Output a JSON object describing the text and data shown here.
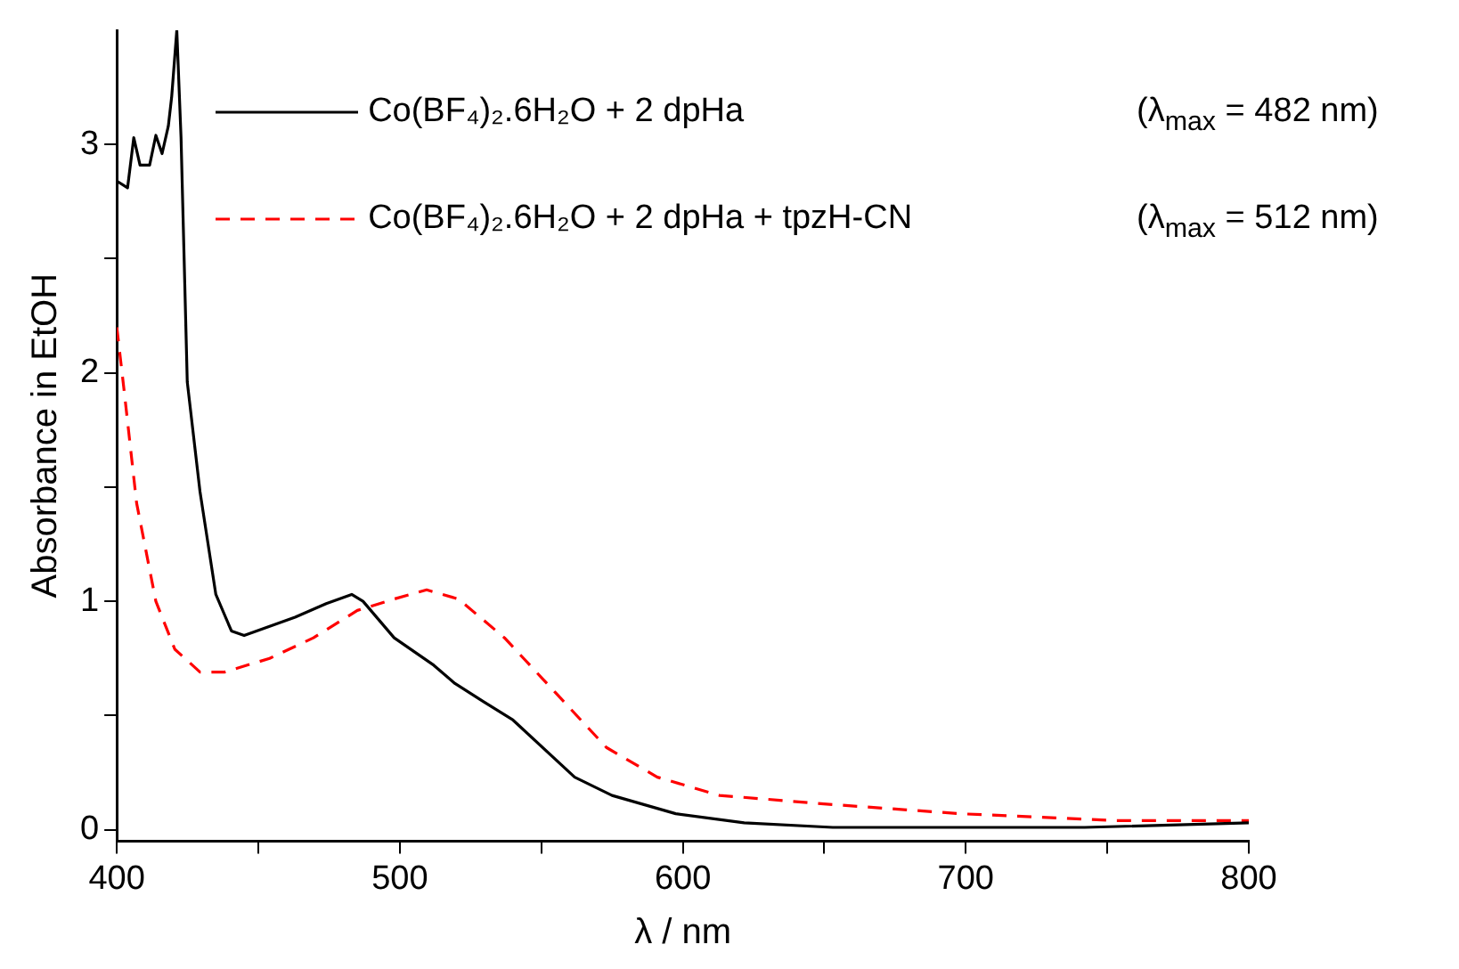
{
  "chart_data": {
    "type": "line",
    "xlabel": "λ / nm",
    "ylabel": "Absorbance in EtOH",
    "xlim": [
      400,
      800
    ],
    "xticks": [
      400,
      {
        "value": 450,
        "label": null
      },
      500,
      {
        "value": 550,
        "label": null
      },
      600,
      {
        "value": 650,
        "label": null
      },
      700,
      {
        "value": 750,
        "label": null
      },
      800
    ],
    "ylim": [
      -0.05,
      3.5
    ],
    "yticks": [
      0,
      {
        "value": 0.5,
        "label": null
      },
      1,
      {
        "value": 1.5,
        "label": null
      },
      2,
      {
        "value": 2.5,
        "label": null
      },
      3
    ],
    "grid": false,
    "legend": "top left",
    "marker": "none",
    "annotations": [
      "(λ$_{max}$ = 482 nm)",
      "(λ$_{max}$ = 512 nm)"
    ],
    "series": [
      {
        "name": "Co(BF₄)₂.6H₂O + 2 dpHa",
        "color": "#000000",
        "line_style": "solid",
        "x": [
          400,
          403.8,
          406,
          408.2,
          411.6,
          413.8,
          416,
          418.2,
          419.4,
          421.2,
          422.7,
          424.9,
          429.4,
          435,
          440.5,
          445,
          463,
          474,
          483,
          487,
          498,
          512,
          519.5,
          529.6,
          540,
          561.8,
          575,
          597.5,
          621.7,
          653,
          742,
          800
        ],
        "values": [
          2.84,
          2.81,
          3.03,
          2.91,
          2.91,
          3.04,
          2.96,
          3.08,
          3.21,
          3.5,
          3.03,
          1.96,
          1.48,
          1.03,
          0.87,
          0.85,
          0.93,
          0.99,
          1.03,
          1.0,
          0.84,
          0.72,
          0.64,
          0.56,
          0.48,
          0.23,
          0.15,
          0.07,
          0.03,
          0.01,
          0.01,
          0.03
        ]
      },
      {
        "name": "Co(BF₄)₂.6H₂O + 2 dpHa + tpzH-CN",
        "color": "#ff0000",
        "line_style": "dashed",
        "x": [
          400,
          402.7,
          407,
          413.8,
          420.5,
          429.4,
          438,
          454,
          469.5,
          485,
          498,
          509.5,
          520.7,
          537,
          555,
          573,
          591,
          613,
          653,
          698,
          753,
          800
        ],
        "values": [
          2.2,
          1.91,
          1.43,
          1.0,
          0.79,
          0.69,
          0.69,
          0.75,
          0.84,
          0.96,
          1.01,
          1.05,
          1.01,
          0.84,
          0.6,
          0.36,
          0.23,
          0.15,
          0.11,
          0.07,
          0.04,
          0.04
        ]
      }
    ]
  }
}
